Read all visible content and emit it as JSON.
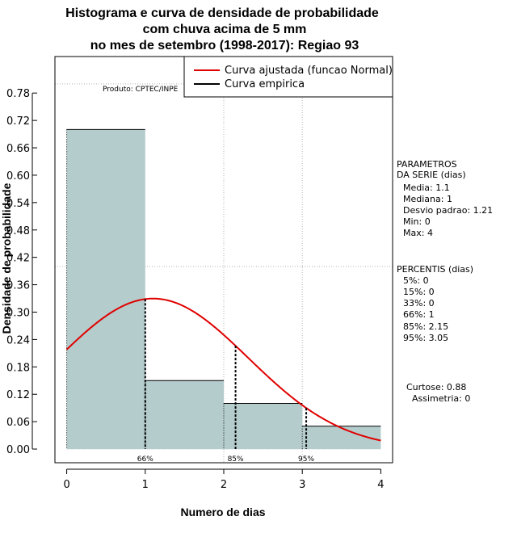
{
  "chart_data": {
    "type": "bar",
    "title_lines": [
      "Histograma e curva de densidade de probabilidade",
      "com chuva acima de 5 mm",
      "no mes de setembro (1998-2017): Regiao 93"
    ],
    "xlabel": "Numero de dias",
    "ylabel": "Densidade de probabilidade",
    "xlim": [
      -0.15,
      4.15
    ],
    "ylim": [
      -0.03,
      0.86
    ],
    "x_ticks": [
      "0",
      "1",
      "2",
      "3",
      "4"
    ],
    "y_ticks": [
      "0.00",
      "0.06",
      "0.12",
      "0.18",
      "0.24",
      "0.30",
      "0.36",
      "0.42",
      "0.48",
      "0.54",
      "0.60",
      "0.66",
      "0.72",
      "0.78"
    ],
    "histogram": [
      {
        "x0": 0,
        "x1": 1,
        "value": 0.7
      },
      {
        "x0": 1,
        "x1": 2,
        "value": 0.15
      },
      {
        "x0": 2,
        "x1": 3,
        "value": 0.1
      },
      {
        "x0": 3,
        "x1": 4,
        "value": 0.05
      }
    ],
    "bar_color": "#b4cccc",
    "curve_color": "#e00000",
    "normal_fit": {
      "mean": 1.1,
      "sd": 1.21
    },
    "percentile_lines": [
      {
        "label": "66%",
        "x": 1.0
      },
      {
        "label": "85%",
        "x": 2.15
      },
      {
        "label": "95%",
        "x": 3.05
      }
    ],
    "legend": {
      "entries": [
        {
          "label": "Curva ajustada (funcao Normal)",
          "color": "#e00000"
        },
        {
          "label": "Curva empirica",
          "color": "#000000"
        }
      ]
    },
    "credit": "Produto: CPTEC/INPE",
    "grid_h": [
      0.4,
      0.8
    ],
    "grid_v": [
      2,
      3
    ]
  },
  "stats": {
    "parametros_title": [
      "PARAMETROS",
      "DA SERIE (dias)"
    ],
    "parametros": [
      "Media: 1.1",
      "Mediana: 1",
      "Desvio padrao: 1.21",
      "Min: 0",
      "Max: 4"
    ],
    "percentis_title": "PERCENTIS (dias)",
    "percentis": [
      "5%: 0",
      "15%: 0",
      "33%: 0",
      "66%: 1",
      "85%: 2.15",
      "95%: 3.05"
    ],
    "curtose": "Curtose: 0.88",
    "assimetria": "Assimetria: 0"
  }
}
